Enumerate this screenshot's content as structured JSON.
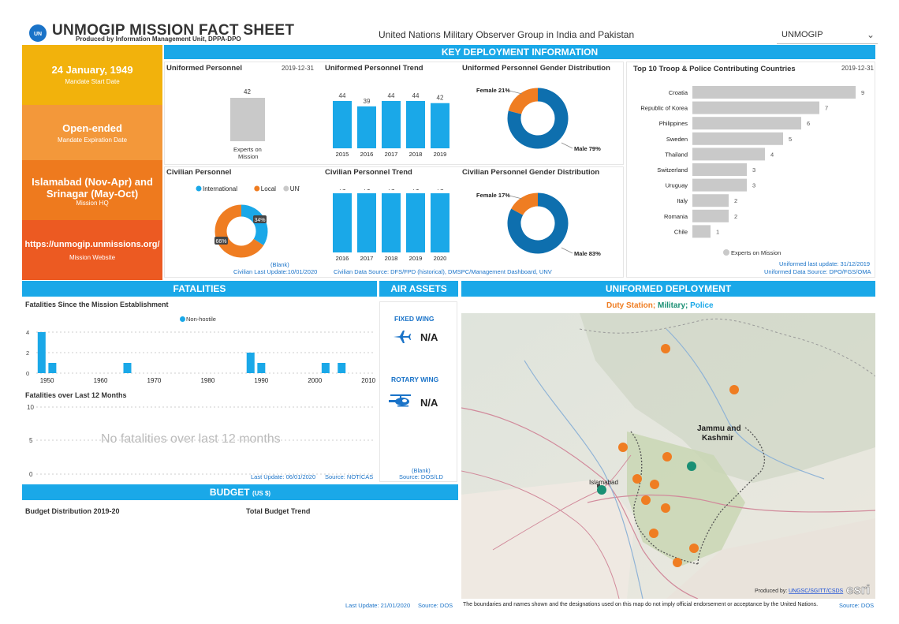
{
  "header": {
    "title": "UNMOGIP MISSION FACT SHEET",
    "subtitle": "Produced by Information Management Unit, DPPA-DPO",
    "center_title": "United Nations Military Observer Group in India and Pakistan",
    "dropdown_value": "UNMOGIP",
    "logo_text": "UN"
  },
  "cards": [
    {
      "big": "24 January, 1949",
      "small": "Mandate Start Date",
      "color": "#f2b20c"
    },
    {
      "big": "Open-ended",
      "small": "Mandate Expiration Date",
      "color": "#f3983a"
    },
    {
      "big1": "Islamabad (Nov-Apr) and",
      "big2": "Srinagar (May-Oct)",
      "small": "Mission HQ",
      "color": "#ee7a1e"
    },
    {
      "big": "https://unmogip.unmissions.org/",
      "small": "Mission Website",
      "color": "#ec5a22"
    }
  ],
  "sections": {
    "key_deployment": "KEY DEPLOYMENT INFORMATION",
    "fatalities": "FATALITIES",
    "air_assets": "AIR ASSETS",
    "uniformed_deployment": "UNIFORMED DEPLOYMENT",
    "budget": "BUDGET",
    "budget_unit": "(US $)"
  },
  "uniformed_personnel": {
    "title": "Uniformed Personnel",
    "date": "2019-12-31",
    "value": "42",
    "label1": "Experts on",
    "label2": "Mission"
  },
  "uniformed_trend": {
    "title": "Uniformed Personnel Trend",
    "years": [
      "2015",
      "2016",
      "2017",
      "2018",
      "2019"
    ],
    "values": [
      44,
      39,
      44,
      44,
      42
    ]
  },
  "uniformed_gender": {
    "title": "Uniformed Personnel Gender Distribution",
    "female_label": "Female 21%",
    "male_label": "Male 79%",
    "female_pct": 21
  },
  "top10": {
    "title": "Top 10 Troop & Police Contributing Countries",
    "date": "2019-12-31",
    "countries": [
      "Croatia",
      "Republic of Korea",
      "Philippines",
      "Sweden",
      "Thailand",
      "Switzerland",
      "Uruguay",
      "Italy",
      "Romania",
      "Chile"
    ],
    "values": [
      9,
      7,
      6,
      5,
      4,
      3,
      3,
      2,
      2,
      1
    ],
    "legend": "Experts on Mission",
    "update": "Uniformed last update: 31/12/2019",
    "source": "Uniformed Data Source: DPO/FGS/OMA"
  },
  "civilian_personnel": {
    "title": "Civilian Personnel",
    "legend": [
      "International",
      "Local",
      "UNV"
    ],
    "pct_local": "66%",
    "pct_international": "34%",
    "blank": "(Blank)",
    "update": "Civilian Last Update:10/01/2020"
  },
  "civilian_trend": {
    "title": "Civilian Personnel Trend",
    "years": [
      "2016",
      "2017",
      "2018",
      "2019",
      "2020"
    ],
    "values": [
      71,
      71,
      71,
      71,
      71
    ]
  },
  "civilian_gender": {
    "title": "Civilian Personnel Gender Distribution",
    "female_label": "Female 17%",
    "male_label": "Male 83%",
    "female_pct": 17
  },
  "civilian_source": "Civilian Data Source: DFS/FPD (historical), DMSPC/Management Dashboard, UNV",
  "fatalities": {
    "since_title": "Fatalities Since the Mission Establishment",
    "legend": "Non-hostile",
    "yticks": [
      "4",
      "2",
      "0"
    ],
    "xticks": [
      "1950",
      "1960",
      "1970",
      "1980",
      "1990",
      "2000",
      "2010"
    ],
    "last12_title": "Fatalities over Last 12 Months",
    "last12_yticks": [
      "10",
      "5",
      "0"
    ],
    "no_fatalities": "No fatalities over last 12 months",
    "update": "Last Update: 06/01/2020",
    "source": "Source: NOTICAS"
  },
  "air": {
    "fixed": "FIXED WING",
    "fixed_val": "N/A",
    "rotary": "ROTARY WING",
    "rotary_val": "N/A",
    "blank": "(Blank)",
    "source": "Source: DOS/LD"
  },
  "map": {
    "legend_duty": "Duty Station;",
    "legend_military": "Military;",
    "legend_police": "Police",
    "region_label1": "Jammu and",
    "region_label2": "Kashmir",
    "city": "Islamabad",
    "produced_by": "Produced by:",
    "produced_link": "UNGSC/SGITT/CSDS",
    "esri": "esri",
    "disclaimer": "The boundaries and names shown and the designations used on this map do not imply official endorsement or acceptance by the United Nations.",
    "source": "Source: DOS"
  },
  "budget": {
    "distribution": "Budget Distribution 2019-20",
    "trend": "Total Budget Trend",
    "update": "Last Update: 21/01/2020",
    "source": "Source: DOS"
  },
  "colors": {
    "blue": "#1aa8e8",
    "dark_blue": "#0e6fae",
    "orange": "#ef7d22",
    "gray": "#c9c9c9",
    "teal": "#1a8f74"
  }
}
